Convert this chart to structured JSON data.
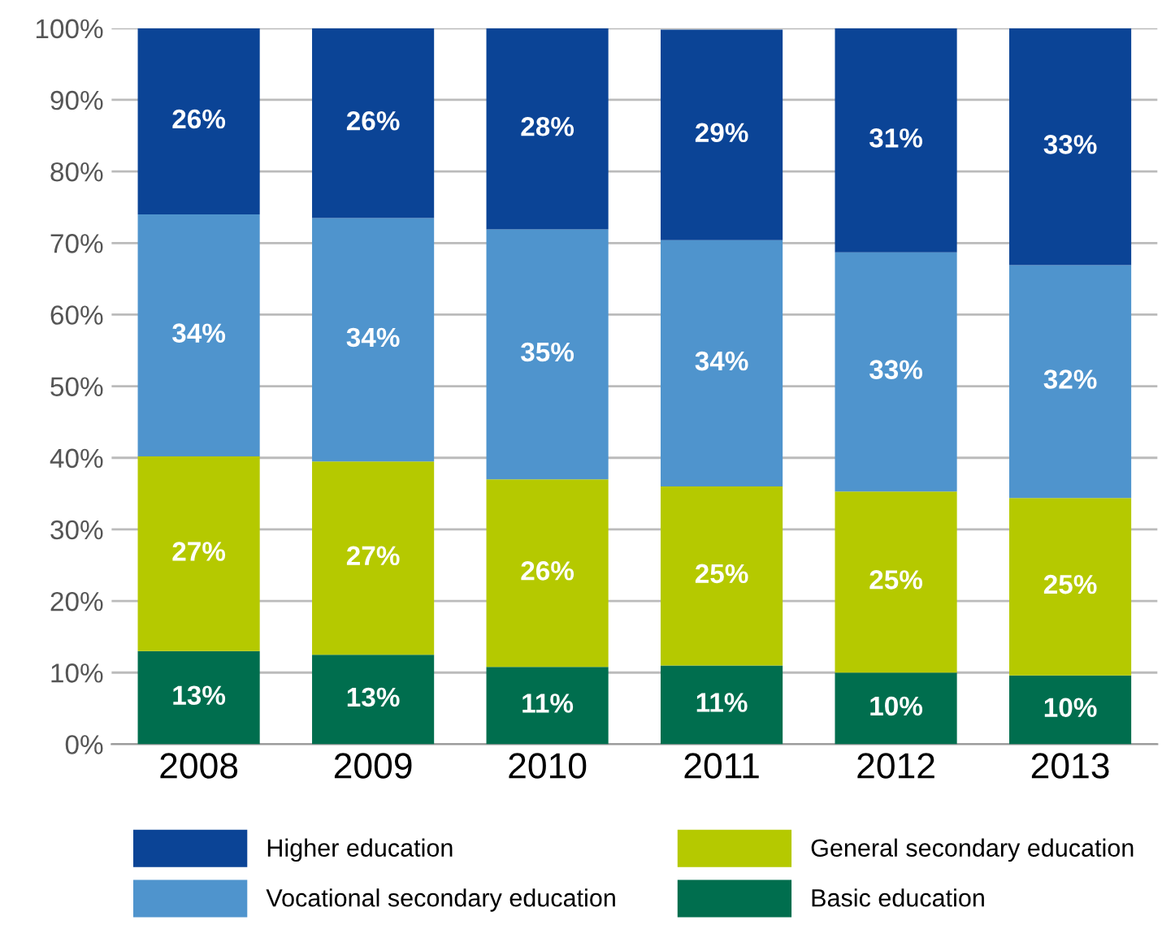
{
  "chart_data": {
    "type": "bar",
    "stacked": true,
    "categories": [
      "2008",
      "2009",
      "2010",
      "2011",
      "2012",
      "2013"
    ],
    "series": [
      {
        "name": "Basic education",
        "color": "#006e4e",
        "values": [
          13,
          12.5,
          10.8,
          11,
          10,
          9.6
        ],
        "value_labels": [
          "13%",
          "13%",
          "11%",
          "11%",
          "10%",
          "10%"
        ]
      },
      {
        "name": "General secondary education",
        "color": "#b5c900",
        "values": [
          27.2,
          27,
          26.2,
          25,
          25.3,
          24.8
        ],
        "value_labels": [
          "27%",
          "27%",
          "26%",
          "25%",
          "25%",
          "25%"
        ]
      },
      {
        "name": "Vocational secondary education",
        "color": "#4f94cd",
        "values": [
          33.8,
          34,
          34.9,
          34.4,
          33.4,
          32.5
        ],
        "value_labels": [
          "34%",
          "34%",
          "35%",
          "34%",
          "33%",
          "32%"
        ]
      },
      {
        "name": "Higher education",
        "color": "#0b4496",
        "values": [
          26,
          26.5,
          28.1,
          29.4,
          31.3,
          33.1
        ],
        "value_labels": [
          "26%",
          "26%",
          "28%",
          "29%",
          "31%",
          "33%"
        ]
      }
    ],
    "ylim": [
      0,
      100
    ],
    "yticks": [
      {
        "value": 0,
        "label": "0%"
      },
      {
        "value": 10,
        "label": "10%"
      },
      {
        "value": 20,
        "label": "20%"
      },
      {
        "value": 30,
        "label": "30%"
      },
      {
        "value": 40,
        "label": "40%"
      },
      {
        "value": 50,
        "label": "50%"
      },
      {
        "value": 60,
        "label": "60%"
      },
      {
        "value": 70,
        "label": "70%"
      },
      {
        "value": 80,
        "label": "80%"
      },
      {
        "value": 90,
        "label": "90%"
      },
      {
        "value": 100,
        "label": "100%"
      }
    ],
    "grid": "y",
    "legend": "bottom"
  }
}
